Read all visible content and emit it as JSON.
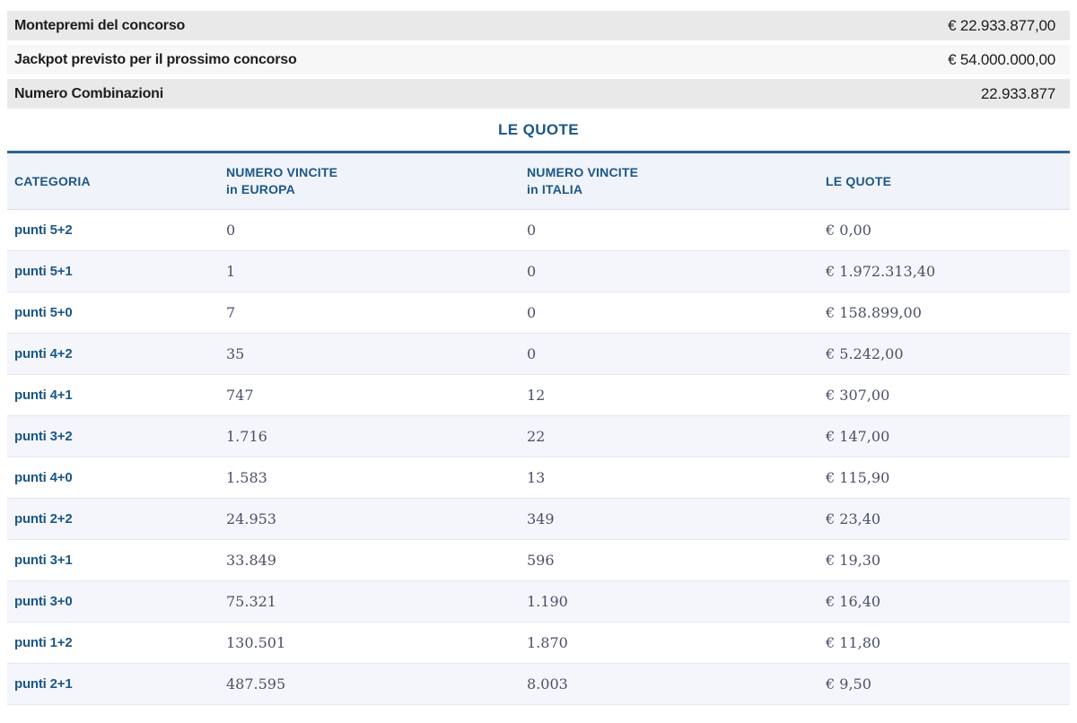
{
  "summary": {
    "rows": [
      {
        "label": "Montepremi del concorso",
        "value": "€ 22.933.877,00"
      },
      {
        "label": "Jackpot previsto per il prossimo concorso",
        "value": "€ 54.000.000,00"
      },
      {
        "label": "Numero Combinazioni",
        "value": "22.933.877"
      }
    ]
  },
  "section_title": "LE QUOTE",
  "table": {
    "headers": [
      {
        "line1": "CATEGORIA",
        "line2": ""
      },
      {
        "line1": "NUMERO VINCITE",
        "line2": "in EUROPA"
      },
      {
        "line1": "NUMERO VINCITE",
        "line2": "in ITALIA"
      },
      {
        "line1": "LE QUOTE",
        "line2": ""
      }
    ],
    "rows": [
      {
        "category": "punti 5+2",
        "wins_europe": "0",
        "wins_italy": "0",
        "quote": "€ 0,00"
      },
      {
        "category": "punti 5+1",
        "wins_europe": "1",
        "wins_italy": "0",
        "quote": "€ 1.972.313,40"
      },
      {
        "category": "punti 5+0",
        "wins_europe": "7",
        "wins_italy": "0",
        "quote": "€ 158.899,00"
      },
      {
        "category": "punti 4+2",
        "wins_europe": "35",
        "wins_italy": "0",
        "quote": "€ 5.242,00"
      },
      {
        "category": "punti 4+1",
        "wins_europe": "747",
        "wins_italy": "12",
        "quote": "€ 307,00"
      },
      {
        "category": "punti 3+2",
        "wins_europe": "1.716",
        "wins_italy": "22",
        "quote": "€ 147,00"
      },
      {
        "category": "punti 4+0",
        "wins_europe": "1.583",
        "wins_italy": "13",
        "quote": "€ 115,90"
      },
      {
        "category": "punti 2+2",
        "wins_europe": "24.953",
        "wins_italy": "349",
        "quote": "€ 23,40"
      },
      {
        "category": "punti 3+1",
        "wins_europe": "33.849",
        "wins_italy": "596",
        "quote": "€ 19,30"
      },
      {
        "category": "punti 3+0",
        "wins_europe": "75.321",
        "wins_italy": "1.190",
        "quote": "€ 16,40"
      },
      {
        "category": "punti 1+2",
        "wins_europe": "130.501",
        "wins_italy": "1.870",
        "quote": "€ 11,80"
      },
      {
        "category": "punti 2+1",
        "wins_europe": "487.595",
        "wins_italy": "8.003",
        "quote": "€ 9,50"
      }
    ]
  },
  "colors": {
    "accent_blue": "#1c5786",
    "table_top_border": "#2d6394",
    "band_gray": "#e9e9e9",
    "band_light_gray": "#f7f7f7",
    "band_text": "#1d1d1b",
    "table_header_bg": "#f0f3fa",
    "row_alt_bg": "#f4f6fb",
    "number_text": "#4b5068",
    "row_separator": "#e3e7f0"
  }
}
